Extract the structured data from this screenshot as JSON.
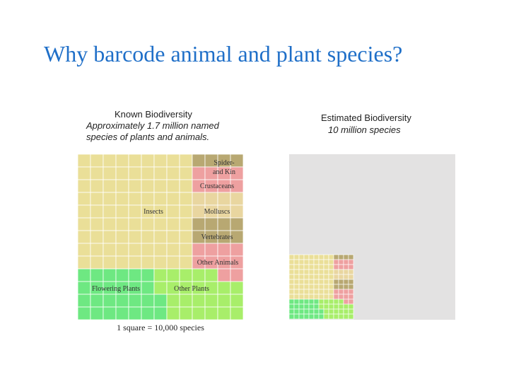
{
  "slide": {
    "title": "Why barcode animal and plant species?"
  },
  "known_panel": {
    "title": "Known Biodiversity",
    "subtitle_line1": "Approximately 1.7 million named",
    "subtitle_line2": "species of plants and animals.",
    "groups": [
      {
        "name": "Insects",
        "label": "Insects",
        "color": "#eadf98"
      },
      {
        "name": "Spiders and kin",
        "label_line1": "Spider-",
        "label_line2": "and Kin",
        "color": "#b8a872"
      },
      {
        "name": "Crustaceans",
        "label": "Crustaceans",
        "color": "#eea0a0"
      },
      {
        "name": "Molluscs",
        "label": "Molluscs",
        "color": "#e9d6a0"
      },
      {
        "name": "Vertebrates",
        "label": "Vertebrates",
        "color": "#b8a872"
      },
      {
        "name": "Other Animals",
        "label": "Other Animals",
        "color": "#eea0a0"
      },
      {
        "name": "Flowering Plants",
        "label": "Flowering Plants",
        "color": "#6ee882"
      },
      {
        "name": "Other Plants",
        "label": "Other Plants",
        "color": "#a8ee6a"
      }
    ],
    "legend_caption": "1 square = 10,000 species"
  },
  "estimated_panel": {
    "title": "Estimated Biodiversity",
    "subtitle": "10 million species",
    "background_color": "#e3e2e2"
  }
}
